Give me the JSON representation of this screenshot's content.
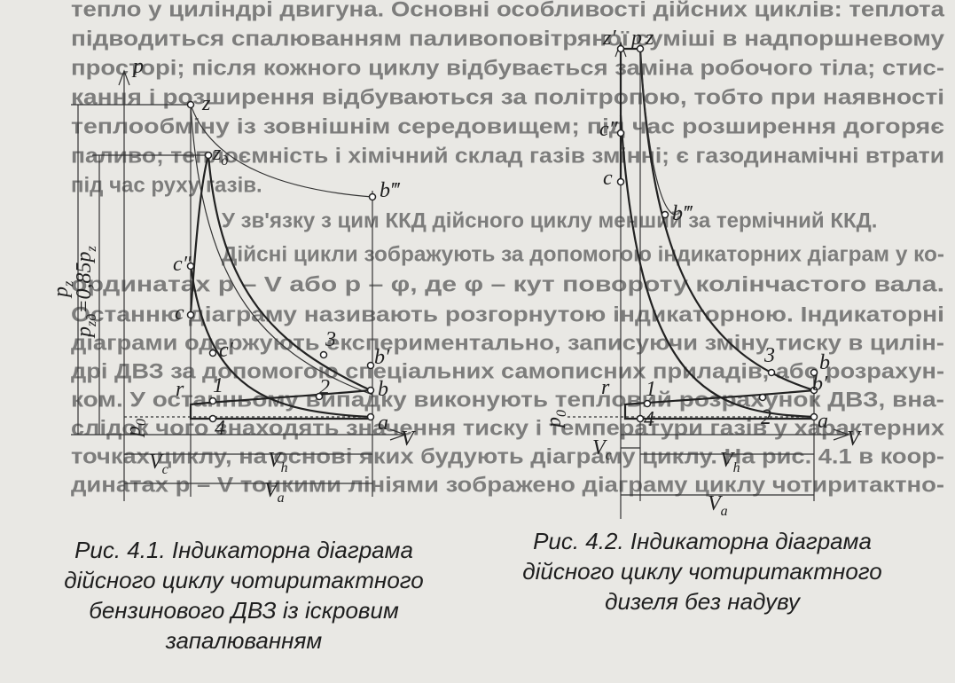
{
  "body_text": {
    "lines": [
      "тепло у циліндрі двигуна. Основні особливості дійсних циклів: теплота",
      "підводиться спалюванням паливоповітряної суміші в надпоршневому",
      "просторі; після кожного циклу відбувається заміна робочого тіла; стис-",
      "кання і розширення відбуваються за політропою, тобто при наявності",
      "теплообміну із зовнішнім середовищем; під час розширення догоряє",
      "паливо; теплоємність і хімічний склад газів змінні; є газодинамічні втрати",
      "під час руху газів.",
      "У зв'язку з цим ККД дійсного циклу менший за термічний ККД.",
      "Дійсні цикли зображують за допомогою індикаторних діаграм у ко-",
      "ординатах p – V або p – φ, де φ – кут повороту колінчастого вала.",
      "Останню діаграму називають розгорнутою індикаторною. Індикаторні",
      "діаграми одержують експериментально, записуючи зміну тиску в цилін-",
      "дрі ДВЗ за допомогою спеціальних самописних приладів, або розрахун-",
      "ком. У останньому випадку виконують тепловий розрахунок ДВЗ, вна-",
      "слідок чого знаходять значення тиску і температури газів у характерних",
      "точках циклу, на основі яких будують діаграму циклу. На рис. 4.1 в коор-",
      "динатах p – V тонкими лініями зображено діаграму циклу чотиритактно-"
    ]
  },
  "figures": [
    {
      "labels": [
        {
          "parts": [
            "p"
          ]
        },
        {
          "parts": [
            "z"
          ]
        },
        {
          "parts": [
            "z",
            "д"
          ]
        },
        {
          "parts": [
            "c″"
          ]
        },
        {
          "parts": [
            "c"
          ]
        },
        {
          "parts": [
            "c′"
          ]
        },
        {
          "parts": [
            "b‴"
          ]
        },
        {
          "parts": [
            "3"
          ]
        },
        {
          "parts": [
            "b′"
          ]
        },
        {
          "parts": [
            "1"
          ]
        },
        {
          "parts": [
            "2"
          ]
        },
        {
          "parts": [
            "b"
          ]
        },
        {
          "parts": [
            "r"
          ]
        },
        {
          "parts": [
            "4"
          ]
        },
        {
          "parts": [
            "a"
          ]
        },
        {
          "parts": [
            "V"
          ]
        },
        {
          "parts": [
            "p",
            "0"
          ]
        },
        {
          "parts": [
            "p",
            "z"
          ]
        },
        {
          "parts": [
            "p",
            "zд",
            "=0,85p",
            "z"
          ]
        },
        {
          "parts": [
            "V",
            "c"
          ]
        },
        {
          "parts": [
            "V",
            "h"
          ]
        },
        {
          "parts": [
            "V",
            "a"
          ]
        }
      ],
      "caption": [
        "Рис. 4.1. Індикаторна діаграма",
        "дійсного циклу чотиритактного",
        "бензинового ДВЗ із іскровим",
        "запалюванням"
      ]
    },
    {
      "labels": [
        {
          "parts": [
            "p"
          ]
        },
        {
          "parts": [
            "z′"
          ]
        },
        {
          "parts": [
            "z"
          ]
        },
        {
          "parts": [
            "c″"
          ]
        },
        {
          "parts": [
            "c"
          ]
        },
        {
          "parts": [
            "b‴"
          ]
        },
        {
          "parts": [
            "r"
          ]
        },
        {
          "parts": [
            "3"
          ]
        },
        {
          "parts": [
            "b"
          ]
        },
        {
          "parts": [
            "b′"
          ]
        },
        {
          "parts": [
            "1"
          ]
        },
        {
          "parts": [
            "4"
          ]
        },
        {
          "parts": [
            "2"
          ]
        },
        {
          "parts": [
            "a"
          ]
        },
        {
          "parts": [
            "V"
          ]
        },
        {
          "parts": [
            "p",
            "0"
          ]
        },
        {
          "parts": [
            "V",
            "c"
          ]
        },
        {
          "parts": [
            "V",
            "h"
          ]
        },
        {
          "parts": [
            "V",
            "a"
          ]
        }
      ],
      "caption": [
        "Рис. 4.2. Індикаторна діаграма",
        "дійсного циклу чотиритактного",
        "дизеля без надуву"
      ]
    }
  ]
}
